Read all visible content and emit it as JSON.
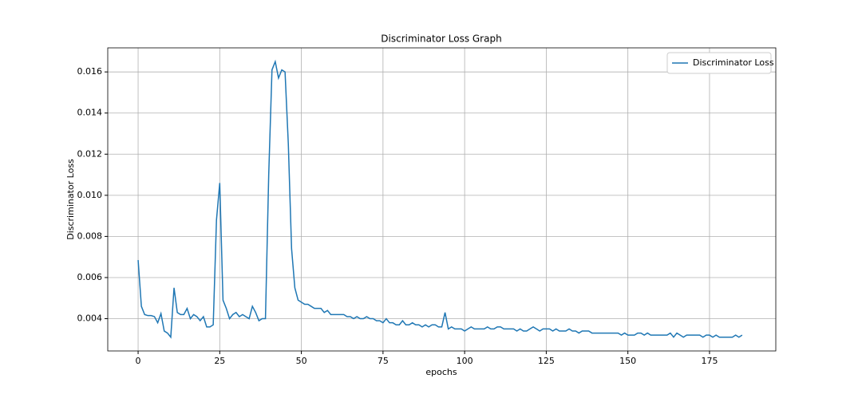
{
  "chart_data": {
    "type": "line",
    "title": "Discriminator Loss Graph",
    "x_label": "epochs",
    "y_label": "Discriminator Loss",
    "x": [
      0,
      1,
      2,
      3,
      4,
      5,
      6,
      7,
      8,
      9,
      10,
      11,
      12,
      13,
      14,
      15,
      16,
      17,
      18,
      19,
      20,
      21,
      22,
      23,
      24,
      25,
      26,
      27,
      28,
      29,
      30,
      31,
      32,
      33,
      34,
      35,
      36,
      37,
      38,
      39,
      40,
      41,
      42,
      43,
      44,
      45,
      46,
      47,
      48,
      49,
      50,
      51,
      52,
      53,
      54,
      55,
      56,
      57,
      58,
      59,
      60,
      61,
      62,
      63,
      64,
      65,
      66,
      67,
      68,
      69,
      70,
      71,
      72,
      73,
      74,
      75,
      76,
      77,
      78,
      79,
      80,
      81,
      82,
      83,
      84,
      85,
      86,
      87,
      88,
      89,
      90,
      91,
      92,
      93,
      94,
      95,
      96,
      97,
      98,
      99,
      100,
      101,
      102,
      103,
      104,
      105,
      106,
      107,
      108,
      109,
      110,
      111,
      112,
      113,
      114,
      115,
      116,
      117,
      118,
      119,
      120,
      121,
      122,
      123,
      124,
      125,
      126,
      127,
      128,
      129,
      130,
      131,
      132,
      133,
      134,
      135,
      136,
      137,
      138,
      139,
      140,
      141,
      142,
      143,
      144,
      145,
      146,
      147,
      148,
      149,
      150,
      151,
      152,
      153,
      154,
      155,
      156,
      157,
      158,
      159,
      160,
      161,
      162,
      163,
      164,
      165,
      166,
      167,
      168,
      169,
      170,
      171,
      172,
      173,
      174,
      175,
      176,
      177,
      178,
      179,
      180,
      181,
      182,
      183,
      184,
      185
    ],
    "series": [
      {
        "name": "Discriminator Loss",
        "color": "#1f77b4",
        "values": [
          0.00685,
          0.0046,
          0.0042,
          0.00415,
          0.00415,
          0.0041,
          0.0038,
          0.00425,
          0.0034,
          0.0033,
          0.0031,
          0.0055,
          0.0043,
          0.0042,
          0.0042,
          0.0045,
          0.004,
          0.0042,
          0.0041,
          0.0039,
          0.0041,
          0.0036,
          0.0036,
          0.0037,
          0.0088,
          0.0106,
          0.0049,
          0.0045,
          0.004,
          0.0042,
          0.0043,
          0.0041,
          0.0042,
          0.0041,
          0.004,
          0.0046,
          0.0043,
          0.0039,
          0.004,
          0.004,
          0.011,
          0.0161,
          0.0165,
          0.0157,
          0.0161,
          0.016,
          0.0125,
          0.0074,
          0.0055,
          0.0049,
          0.0048,
          0.0047,
          0.0047,
          0.0046,
          0.0045,
          0.0045,
          0.0045,
          0.0043,
          0.0044,
          0.0042,
          0.0042,
          0.0042,
          0.0042,
          0.0042,
          0.0041,
          0.0041,
          0.004,
          0.0041,
          0.004,
          0.004,
          0.0041,
          0.004,
          0.004,
          0.0039,
          0.0039,
          0.0038,
          0.004,
          0.0038,
          0.0038,
          0.0037,
          0.0037,
          0.0039,
          0.0037,
          0.0037,
          0.0038,
          0.0037,
          0.0037,
          0.0036,
          0.0037,
          0.0036,
          0.0037,
          0.0037,
          0.0036,
          0.0036,
          0.0043,
          0.0035,
          0.0036,
          0.0035,
          0.0035,
          0.0035,
          0.0034,
          0.0035,
          0.0036,
          0.0035,
          0.0035,
          0.0035,
          0.0035,
          0.0036,
          0.0035,
          0.0035,
          0.0036,
          0.0036,
          0.0035,
          0.0035,
          0.0035,
          0.0035,
          0.0034,
          0.0035,
          0.0034,
          0.0034,
          0.0035,
          0.0036,
          0.0035,
          0.0034,
          0.0035,
          0.0035,
          0.0035,
          0.0034,
          0.0035,
          0.0034,
          0.0034,
          0.0034,
          0.0035,
          0.0034,
          0.0034,
          0.0033,
          0.0034,
          0.0034,
          0.0034,
          0.0033,
          0.0033,
          0.0033,
          0.0033,
          0.0033,
          0.0033,
          0.0033,
          0.0033,
          0.0033,
          0.0032,
          0.0033,
          0.0032,
          0.0032,
          0.0032,
          0.0033,
          0.0033,
          0.0032,
          0.0033,
          0.0032,
          0.0032,
          0.0032,
          0.0032,
          0.0032,
          0.0032,
          0.0033,
          0.0031,
          0.0033,
          0.0032,
          0.0031,
          0.0032,
          0.0032,
          0.0032,
          0.0032,
          0.0032,
          0.0031,
          0.0032,
          0.0032,
          0.0031,
          0.0032,
          0.0031,
          0.0031,
          0.0031,
          0.0031,
          0.0031,
          0.0032,
          0.0031,
          0.0032
        ]
      }
    ],
    "xlim": [
      -9.3,
      195.3
    ],
    "ylim": [
      0.00243,
      0.01717
    ],
    "xticks": [
      0,
      25,
      50,
      75,
      100,
      125,
      150,
      175
    ],
    "yticks": [
      0.004,
      0.006,
      0.008,
      {
        "value": 0.01,
        "label": "0.010"
      },
      0.012,
      0.014,
      0.016
    ],
    "grid": true,
    "legend": "upper-right"
  }
}
